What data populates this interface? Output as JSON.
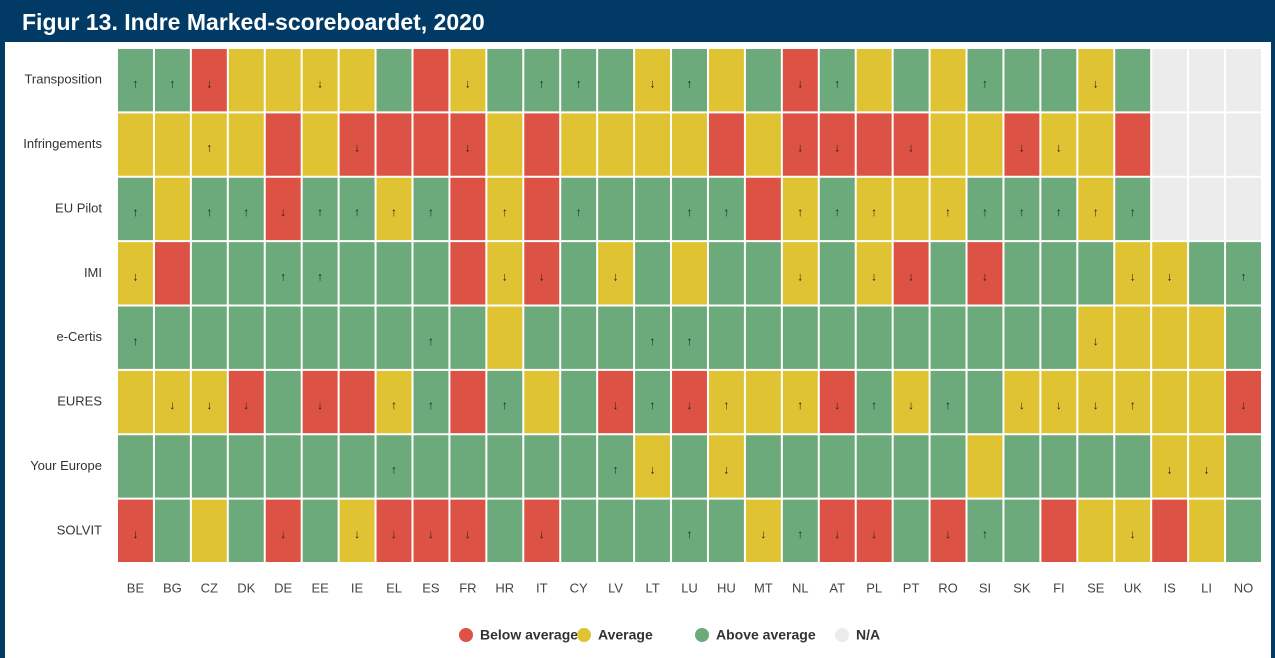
{
  "chart_data": {
    "type": "heatmap",
    "title": "Figur 13. Indre Marked-scoreboardet, 2020",
    "legend": [
      {
        "name": "Below average",
        "color": "#dc5245"
      },
      {
        "name": "Average",
        "color": "#dfc332"
      },
      {
        "name": "Above average",
        "color": "#6ca97b"
      },
      {
        "name": "N/A",
        "color": "#ececec"
      }
    ],
    "columns": [
      "BE",
      "BG",
      "CZ",
      "DK",
      "DE",
      "EE",
      "IE",
      "EL",
      "ES",
      "FR",
      "HR",
      "IT",
      "CY",
      "LV",
      "LT",
      "LU",
      "HU",
      "MT",
      "NL",
      "AT",
      "PL",
      "PT",
      "RO",
      "SI",
      "SK",
      "FI",
      "SE",
      "UK",
      "IS",
      "LI",
      "NO"
    ],
    "rows": [
      {
        "name": "Transposition",
        "classes": [
          "Above average",
          "Above average",
          "Below average",
          "Average",
          "Average",
          "Average",
          "Average",
          "Above average",
          "Below average",
          "Average",
          "Above average",
          "Above average",
          "Above average",
          "Above average",
          "Average",
          "Above average",
          "Average",
          "Above average",
          "Below average",
          "Above average",
          "Average",
          "Above average",
          "Average",
          "Above average",
          "Above average",
          "Above average",
          "Average",
          "Above average",
          "N/A",
          "N/A",
          "N/A"
        ],
        "arrows": [
          "↑",
          "↑",
          "↓",
          null,
          null,
          "↓",
          null,
          null,
          null,
          "↓",
          null,
          "↑",
          "↑",
          null,
          "↓",
          "↑",
          null,
          null,
          "↓",
          "↑",
          null,
          null,
          null,
          "↑",
          null,
          null,
          "↓",
          null,
          null,
          null,
          null
        ]
      },
      {
        "name": "Infringements",
        "classes": [
          "Average",
          "Average",
          "Average",
          "Average",
          "Below average",
          "Average",
          "Below average",
          "Below average",
          "Below average",
          "Below average",
          "Average",
          "Below average",
          "Average",
          "Average",
          "Average",
          "Average",
          "Below average",
          "Average",
          "Below average",
          "Below average",
          "Below average",
          "Below average",
          "Average",
          "Average",
          "Below average",
          "Average",
          "Average",
          "Below average",
          "N/A",
          "N/A",
          "N/A"
        ],
        "arrows": [
          null,
          null,
          "↑",
          null,
          null,
          null,
          "↓",
          null,
          null,
          "↓",
          null,
          null,
          null,
          null,
          null,
          null,
          null,
          null,
          "↓",
          "↓",
          null,
          "↓",
          null,
          null,
          "↓",
          "↓",
          null,
          null,
          null,
          null,
          null
        ]
      },
      {
        "name": "EU Pilot",
        "classes": [
          "Above average",
          "Average",
          "Above average",
          "Above average",
          "Below average",
          "Above average",
          "Above average",
          "Average",
          "Above average",
          "Below average",
          "Average",
          "Below average",
          "Above average",
          "Above average",
          "Above average",
          "Above average",
          "Above average",
          "Below average",
          "Average",
          "Above average",
          "Average",
          "Average",
          "Average",
          "Above average",
          "Above average",
          "Above average",
          "Average",
          "Above average",
          "N/A",
          "N/A",
          "N/A"
        ],
        "arrows": [
          "↑",
          null,
          "↑",
          "↑",
          "↓",
          "↑",
          "↑",
          "↑",
          "↑",
          null,
          "↑",
          null,
          "↑",
          null,
          null,
          "↑",
          "↑",
          null,
          "↑",
          "↑",
          "↑",
          null,
          "↑",
          "↑",
          "↑",
          "↑",
          "↑",
          "↑",
          null,
          null,
          null
        ]
      },
      {
        "name": "IMI",
        "classes": [
          "Average",
          "Below average",
          "Above average",
          "Above average",
          "Above average",
          "Above average",
          "Above average",
          "Above average",
          "Above average",
          "Below average",
          "Average",
          "Below average",
          "Above average",
          "Average",
          "Above average",
          "Average",
          "Above average",
          "Above average",
          "Average",
          "Above average",
          "Average",
          "Below average",
          "Above average",
          "Below average",
          "Above average",
          "Above average",
          "Above average",
          "Average",
          "Average",
          "Above average",
          "Above average"
        ],
        "arrows": [
          "↓",
          null,
          null,
          null,
          "↑",
          "↑",
          null,
          null,
          null,
          null,
          "↓",
          "↓",
          null,
          "↓",
          null,
          null,
          null,
          null,
          "↓",
          null,
          "↓",
          "↓",
          null,
          "↓",
          null,
          null,
          null,
          "↓",
          "↓",
          null,
          "↑"
        ]
      },
      {
        "name": "e-Certis",
        "classes": [
          "Above average",
          "Above average",
          "Above average",
          "Above average",
          "Above average",
          "Above average",
          "Above average",
          "Above average",
          "Above average",
          "Above average",
          "Average",
          "Above average",
          "Above average",
          "Above average",
          "Above average",
          "Above average",
          "Above average",
          "Above average",
          "Above average",
          "Above average",
          "Above average",
          "Above average",
          "Above average",
          "Above average",
          "Above average",
          "Above average",
          "Average",
          "Average",
          "Average",
          "Average",
          "Above average"
        ],
        "arrows": [
          "↑",
          null,
          null,
          null,
          null,
          null,
          null,
          null,
          "↑",
          null,
          null,
          null,
          null,
          null,
          "↑",
          "↑",
          null,
          null,
          null,
          null,
          null,
          null,
          null,
          null,
          null,
          null,
          "↓",
          null,
          null,
          null,
          null
        ]
      },
      {
        "name": "EURES",
        "classes": [
          "Average",
          "Average",
          "Average",
          "Below average",
          "Above average",
          "Below average",
          "Below average",
          "Average",
          "Above average",
          "Below average",
          "Above average",
          "Average",
          "Above average",
          "Below average",
          "Above average",
          "Below average",
          "Average",
          "Average",
          "Average",
          "Below average",
          "Above average",
          "Average",
          "Above average",
          "Above average",
          "Average",
          "Average",
          "Average",
          "Average",
          "Average",
          "Average",
          "Below average"
        ],
        "arrows": [
          null,
          "↓",
          "↓",
          "↓",
          null,
          "↓",
          null,
          "↑",
          "↑",
          null,
          "↑",
          null,
          null,
          "↓",
          "↑",
          "↓",
          "↑",
          null,
          "↑",
          "↓",
          "↑",
          "↓",
          "↑",
          null,
          "↓",
          "↓",
          "↓",
          "↑",
          null,
          null,
          "↓"
        ]
      },
      {
        "name": "Your Europe",
        "classes": [
          "Above average",
          "Above average",
          "Above average",
          "Above average",
          "Above average",
          "Above average",
          "Above average",
          "Above average",
          "Above average",
          "Above average",
          "Above average",
          "Above average",
          "Above average",
          "Above average",
          "Average",
          "Above average",
          "Average",
          "Above average",
          "Above average",
          "Above average",
          "Above average",
          "Above average",
          "Above average",
          "Average",
          "Above average",
          "Above average",
          "Above average",
          "Above average",
          "Average",
          "Average",
          "Above average"
        ],
        "arrows": [
          null,
          null,
          null,
          null,
          null,
          null,
          null,
          "↑",
          null,
          null,
          null,
          null,
          null,
          "↑",
          "↓",
          null,
          "↓",
          null,
          null,
          null,
          null,
          null,
          null,
          null,
          null,
          null,
          null,
          null,
          "↓",
          "↓",
          null
        ]
      },
      {
        "name": "SOLVIT",
        "classes": [
          "Below average",
          "Above average",
          "Average",
          "Above average",
          "Below average",
          "Above average",
          "Average",
          "Below average",
          "Below average",
          "Below average",
          "Above average",
          "Below average",
          "Above average",
          "Above average",
          "Above average",
          "Above average",
          "Above average",
          "Average",
          "Above average",
          "Below average",
          "Below average",
          "Above average",
          "Below average",
          "Above average",
          "Above average",
          "Below average",
          "Average",
          "Average",
          "Below average",
          "Average",
          "Above average"
        ],
        "arrows": [
          "↓",
          null,
          null,
          null,
          "↓",
          null,
          "↓",
          "↓",
          "↓",
          "↓",
          null,
          "↓",
          null,
          null,
          null,
          "↑",
          null,
          "↓",
          "↑",
          "↓",
          "↓",
          null,
          "↓",
          "↑",
          null,
          null,
          null,
          "↓",
          null,
          null,
          null
        ]
      }
    ]
  }
}
